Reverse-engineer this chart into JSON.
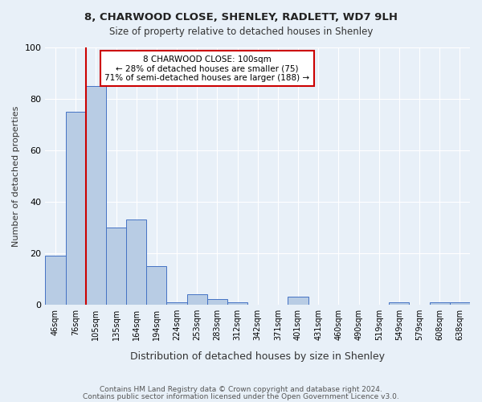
{
  "title1": "8, CHARWOOD CLOSE, SHENLEY, RADLETT, WD7 9LH",
  "title2": "Size of property relative to detached houses in Shenley",
  "xlabel": "Distribution of detached houses by size in Shenley",
  "ylabel": "Number of detached properties",
  "footer1": "Contains HM Land Registry data © Crown copyright and database right 2024.",
  "footer2": "Contains public sector information licensed under the Open Government Licence v3.0.",
  "categories": [
    "46sqm",
    "76sqm",
    "105sqm",
    "135sqm",
    "164sqm",
    "194sqm",
    "224sqm",
    "253sqm",
    "283sqm",
    "312sqm",
    "342sqm",
    "371sqm",
    "401sqm",
    "431sqm",
    "460sqm",
    "490sqm",
    "519sqm",
    "549sqm",
    "579sqm",
    "608sqm",
    "638sqm"
  ],
  "values": [
    19,
    75,
    85,
    30,
    33,
    15,
    1,
    4,
    2,
    1,
    0,
    0,
    3,
    0,
    0,
    0,
    0,
    1,
    0,
    1,
    1
  ],
  "bar_color": "#b8cce4",
  "bar_edge_color": "#4472c4",
  "property_size": 100,
  "property_bin_index": 2,
  "annotation_line": "8 CHARWOOD CLOSE: 100sqm",
  "annotation_line2": "← 28% of detached houses are smaller (75)",
  "annotation_line3": "71% of semi-detached houses are larger (188) →",
  "annotation_box_color": "#ffffff",
  "annotation_box_edge": "#cc0000",
  "property_line_color": "#cc0000",
  "bg_color": "#e8f0f8",
  "ylim": [
    0,
    100
  ],
  "yticks": [
    0,
    20,
    40,
    60,
    80,
    100
  ]
}
